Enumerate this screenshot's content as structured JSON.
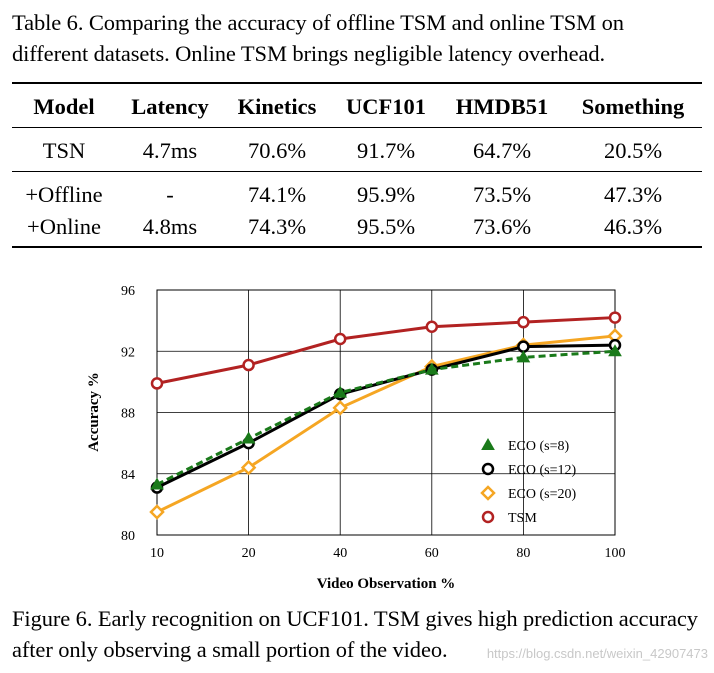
{
  "table_caption": "Table 6. Comparing the accuracy of offline TSM and online TSM on different datasets. Online TSM brings negligible latency overhead.",
  "table": {
    "headers": [
      "Model",
      "Latency",
      "Kinetics",
      "UCF101",
      "HMDB51",
      "Something"
    ],
    "rows": [
      [
        "TSN",
        "4.7ms",
        "70.6%",
        "91.7%",
        "64.7%",
        "20.5%"
      ],
      [
        "+Offline",
        "-",
        "74.1%",
        "95.9%",
        "73.5%",
        "47.3%"
      ],
      [
        "+Online",
        "4.8ms",
        "74.3%",
        "95.5%",
        "73.6%",
        "46.3%"
      ]
    ]
  },
  "chart_data": {
    "type": "line",
    "title": "",
    "xlabel": "Video Observation %",
    "ylabel": "Accuracy %",
    "categories": [
      "10",
      "20",
      "40",
      "60",
      "80",
      "100"
    ],
    "yticks": [
      "80",
      "84",
      "88",
      "92",
      "96"
    ],
    "ylim": [
      80,
      96
    ],
    "legend_position": "center-right",
    "series": [
      {
        "name": "ECO (s=8)",
        "marker": "triangle",
        "style": "dashed",
        "color": "#1a7a1a",
        "values": [
          83.3,
          86.3,
          89.3,
          90.8,
          91.6,
          92.0
        ]
      },
      {
        "name": "ECO (s=12)",
        "marker": "circle",
        "style": "solid",
        "color": "#000000",
        "values": [
          83.1,
          86.0,
          89.2,
          90.8,
          92.3,
          92.4
        ]
      },
      {
        "name": "ECO (s=20)",
        "marker": "diamond",
        "style": "solid",
        "color": "#f5a623",
        "values": [
          81.5,
          84.4,
          88.3,
          91.0,
          92.4,
          93.0
        ]
      },
      {
        "name": "TSM",
        "marker": "circle",
        "style": "solid",
        "color": "#b22222",
        "values": [
          89.9,
          91.1,
          92.8,
          93.6,
          93.9,
          94.2
        ]
      }
    ]
  },
  "figure_caption": "Figure 6. Early recognition on UCF101. TSM gives high prediction accuracy after only observing a small portion of the video.",
  "watermark": "https://blog.csdn.net/weixin_42907473"
}
